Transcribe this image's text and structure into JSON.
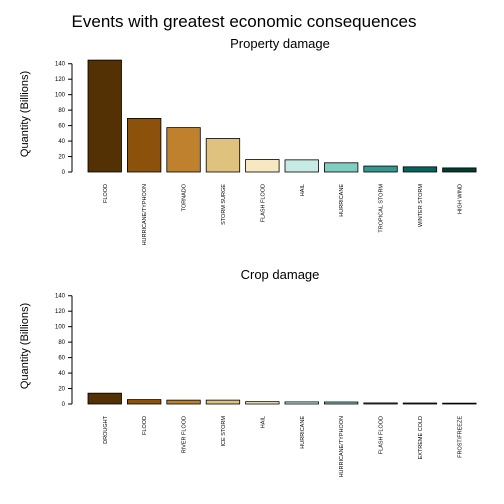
{
  "page_title": "Events with greatest economic consequences",
  "colors": [
    "#543005",
    "#8C510A",
    "#BF812D",
    "#DFC27D",
    "#F6E8C3",
    "#C7EAE5",
    "#80CDC1",
    "#35978F",
    "#01665E",
    "#003C30"
  ],
  "chart_data": [
    {
      "type": "bar",
      "title": "Property damage",
      "ylabel": "Quantity (Billions)",
      "xlabel": "",
      "ylim": [
        0,
        150
      ],
      "yticks": [
        0,
        20,
        40,
        60,
        80,
        100,
        120,
        140
      ],
      "grid": false,
      "categories": [
        "FLOOD",
        "HURRICANE/TYPHOON",
        "TORNADO",
        "STORM SURGE",
        "FLASH FLOOD",
        "HAIL",
        "HURRICANE",
        "TROPICAL STORM",
        "WINTER STORM",
        "HIGH WIND"
      ],
      "values": [
        144.7,
        69.3,
        57.4,
        43.3,
        16.1,
        15.7,
        11.9,
        7.7,
        6.7,
        5.3
      ]
    },
    {
      "type": "bar",
      "title": "Crop damage",
      "ylabel": "Quantity (Billions)",
      "xlabel": "",
      "ylim": [
        0,
        150
      ],
      "yticks": [
        0,
        20,
        40,
        60,
        80,
        100,
        120,
        140
      ],
      "grid": false,
      "categories": [
        "DROUGHT",
        "FLOOD",
        "RIVER FLOOD",
        "ICE STORM",
        "HAIL",
        "HURRICANE",
        "HURRICANE/TYPHOON",
        "FLASH FLOOD",
        "EXTREME COLD",
        "FROST/FREEZE"
      ],
      "values": [
        14.0,
        5.7,
        5.0,
        5.0,
        3.0,
        2.7,
        2.6,
        1.4,
        1.3,
        1.1
      ]
    }
  ]
}
